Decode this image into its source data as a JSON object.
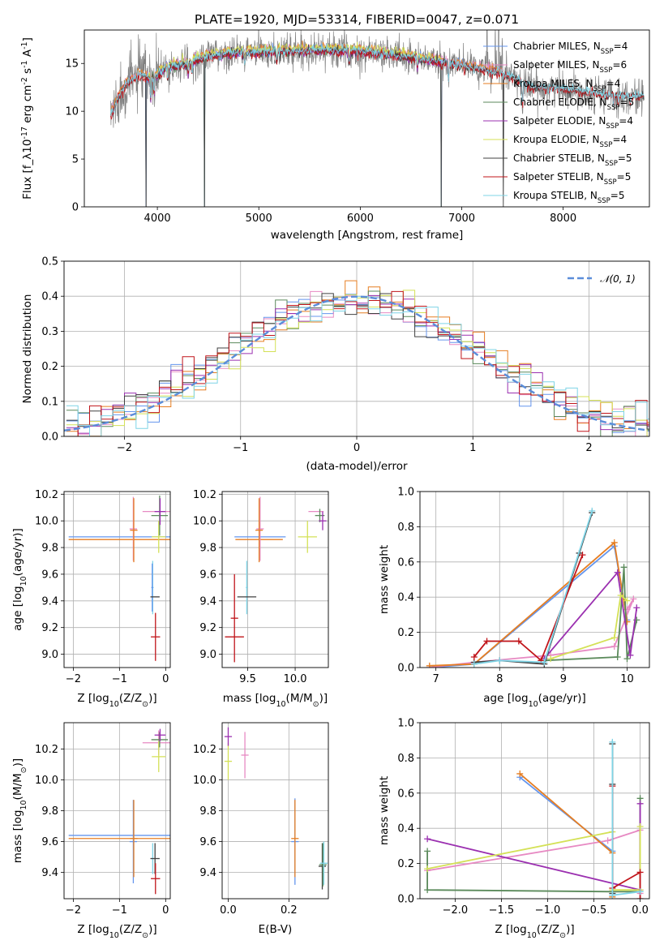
{
  "figure": {
    "title": "PLATE=1920, MJD=53314, FIBERID=0047, z=0.071"
  },
  "chart_data": [
    {
      "id": "spectrum",
      "type": "line",
      "xlabel": "wavelength [Angstrom, rest frame]",
      "ylabel": "Flux [f_λ10^-17 erg cm^-2 s^-1 A^-1]",
      "xlim": [
        3280,
        8850
      ],
      "ylim": [
        0,
        18.5
      ],
      "xticks": [
        4000,
        5000,
        6000,
        7000,
        8000
      ],
      "yticks": [
        0,
        5,
        10,
        15
      ],
      "grid": false,
      "legend_position": "right",
      "data_color": "#808080",
      "series": [
        {
          "name": "Chabrier MILES, N_SSP=4",
          "color": "#6495ED",
          "offset": 0.1,
          "range": [
            3540,
            7400
          ]
        },
        {
          "name": "Salpeter MILES, N_SSP=6",
          "color": "#E78AC3",
          "offset": 0.2,
          "range": [
            3540,
            7400
          ]
        },
        {
          "name": "Kroupa MILES, N_SSP=4",
          "color": "#E67E22",
          "offset": 0.25,
          "range": [
            3540,
            7400
          ]
        },
        {
          "name": "Chabrier ELODIE, N_SSP=5",
          "color": "#5B8A5B",
          "offset": 0.0,
          "range": [
            3900,
            6800
          ]
        },
        {
          "name": "Salpeter ELODIE, N_SSP=4",
          "color": "#9B30B0",
          "offset": -0.1,
          "range": [
            3900,
            6800
          ]
        },
        {
          "name": "Kroupa ELODIE, N_SSP=4",
          "color": "#D4E157",
          "offset": 0.3,
          "range": [
            3900,
            6800
          ]
        },
        {
          "name": "Chabrier STELIB, N_SSP=5",
          "color": "#404040",
          "offset": -0.05,
          "range": [
            3540,
            8800
          ]
        },
        {
          "name": "Salpeter STELIB, N_SSP=5",
          "color": "#C0141A",
          "offset": -0.15,
          "range": [
            3540,
            8800
          ]
        },
        {
          "name": "Kroupa STELIB, N_SSP=5",
          "color": "#7FD4E6",
          "offset": 0.05,
          "range": [
            3540,
            8800
          ]
        }
      ],
      "continuum": [
        [
          3540,
          9.6
        ],
        [
          3620,
          11.5
        ],
        [
          3700,
          13.0
        ],
        [
          3820,
          13.8
        ],
        [
          3950,
          13.4
        ],
        [
          4100,
          14.6
        ],
        [
          4300,
          15.0
        ],
        [
          4500,
          15.8
        ],
        [
          4800,
          16.1
        ],
        [
          5200,
          16.3
        ],
        [
          5600,
          16.4
        ],
        [
          6000,
          16.3
        ],
        [
          6400,
          15.8
        ],
        [
          6800,
          15.2
        ],
        [
          7200,
          14.4
        ],
        [
          7400,
          14.0
        ],
        [
          7700,
          12.5
        ],
        [
          8000,
          12.4
        ],
        [
          8400,
          11.8
        ],
        [
          8800,
          11.6
        ]
      ],
      "absorption_lines": [
        [
          3934,
          2.5
        ],
        [
          3969,
          2.0
        ],
        [
          4102,
          1.5
        ],
        [
          4305,
          1.5
        ],
        [
          4340,
          1.5
        ],
        [
          4861,
          1.2
        ],
        [
          5175,
          1.5
        ],
        [
          5890,
          1.5
        ],
        [
          6563,
          1.0
        ],
        [
          6870,
          2.0
        ],
        [
          7600,
          3.0
        ],
        [
          8500,
          1.0
        ],
        [
          8542,
          1.2
        ],
        [
          8662,
          1.0
        ]
      ],
      "sky_spikes": [
        [
          7250,
          6.0
        ],
        [
          7330,
          5.0
        ],
        [
          7365,
          4.0
        ],
        [
          7400,
          3.5
        ]
      ],
      "masked_dips": [
        [
          3890,
          0
        ],
        [
          4465,
          0
        ],
        [
          6800,
          0
        ],
        [
          7410,
          0
        ]
      ]
    },
    {
      "id": "residuals",
      "type": "line",
      "xlabel": "(data-model)/error",
      "ylabel": "Normed distribution",
      "xlim": [
        -2.52,
        2.52
      ],
      "ylim": [
        0,
        0.5
      ],
      "xticks": [
        -2,
        -1,
        0,
        1,
        2
      ],
      "yticks": [
        0.0,
        0.1,
        0.2,
        0.3,
        0.4,
        0.5
      ],
      "grid": true,
      "legend_position": "top-right",
      "gaussian": {
        "name": "𝒩(0, 1)",
        "mean": 0,
        "sigma": 1,
        "color": "#5B8DD9"
      },
      "bin_width": 0.1,
      "bin_start": -2.5
    },
    {
      "id": "age_vs_Z",
      "type": "scatter",
      "xlabel": "Z [log10(Z/Z⊙)]",
      "ylabel": "age [log10(age/yr)]",
      "xlim": [
        -2.2,
        0.1
      ],
      "ylim": [
        8.9,
        10.22
      ],
      "xticks": [
        -2,
        -1,
        0
      ],
      "yticks": [
        9.0,
        9.2,
        9.4,
        9.6,
        9.8,
        10.0,
        10.2
      ],
      "grid": true,
      "errorbars": [
        {
          "series": "Chabrier MILES",
          "x": -0.7,
          "xerr": 1.4,
          "y": 9.88,
          "yerr": 0.0
        },
        {
          "series": "Kroupa MILES",
          "x": -0.7,
          "xerr": 1.4,
          "y": 9.86,
          "yerr": 0.0
        },
        {
          "series": "Salpeter MILES (v)",
          "x": -0.7,
          "xerr": 0.0,
          "y": 9.94,
          "yerr": 0.24
        },
        {
          "series": "Kroupa MILES (v)",
          "x": -0.69,
          "xerr": 0.0,
          "y": 9.93,
          "yerr": 0.24
        },
        {
          "series": "Salpeter MILES",
          "x": -0.15,
          "xerr": 0.35,
          "y": 10.07,
          "yerr": 0.0
        },
        {
          "series": "Kroupa ELODIE",
          "x": -0.15,
          "xerr": 0.15,
          "y": 9.88,
          "yerr": 0.12
        },
        {
          "series": "Chabrier ELODIE",
          "x": -0.13,
          "xerr": 0.18,
          "y": 10.04,
          "yerr": 0.15
        },
        {
          "series": "Salpeter ELODIE",
          "x": -0.12,
          "xerr": 0.12,
          "y": 10.07,
          "yerr": 0.1
        },
        {
          "series": "Kroupa STELIB",
          "x": -0.28,
          "xerr": 0.02,
          "y": 9.5,
          "yerr": 0.2
        },
        {
          "series": "Chabrier MILES (s)",
          "x": -0.29,
          "xerr": 0.02,
          "y": 9.5,
          "yerr": 0.18
        },
        {
          "series": "Chabrier STELIB",
          "x": -0.23,
          "xerr": 0.1,
          "y": 9.43,
          "yerr": 0.0
        },
        {
          "series": "Salpeter STELIB",
          "x": -0.22,
          "xerr": 0.1,
          "y": 9.13,
          "yerr": 0.18
        }
      ]
    },
    {
      "id": "age_vs_mass",
      "type": "scatter",
      "xlabel": "mass [log10(M/M⊙)]",
      "ylabel": "",
      "xlim": [
        9.23,
        10.35
      ],
      "ylim": [
        8.9,
        10.22
      ],
      "xticks": [
        9.5,
        10.0
      ],
      "yticks": [
        9.0,
        9.2,
        9.4,
        9.6,
        9.8,
        10.0,
        10.2
      ],
      "grid": true,
      "errorbars": [
        {
          "series": "Chabrier MILES",
          "x": 9.63,
          "xerr": 0.27,
          "y": 9.88,
          "yerr": 0.0
        },
        {
          "series": "Kroupa MILES",
          "x": 9.62,
          "xerr": 0.25,
          "y": 9.86,
          "yerr": 0.0
        },
        {
          "series": "Salpeter MILES (v)",
          "x": 9.63,
          "xerr": 0.0,
          "y": 9.94,
          "yerr": 0.24
        },
        {
          "series": "Kroupa MILES (v)",
          "x": 9.62,
          "xerr": 0.0,
          "y": 9.93,
          "yerr": 0.24
        },
        {
          "series": "Salpeter MILES",
          "x": 10.22,
          "xerr": 0.08,
          "y": 10.07,
          "yerr": 0.0
        },
        {
          "series": "Kroupa ELODIE",
          "x": 10.13,
          "xerr": 0.1,
          "y": 9.88,
          "yerr": 0.12
        },
        {
          "series": "Chabrier ELODIE",
          "x": 10.26,
          "xerr": 0.05,
          "y": 10.04,
          "yerr": 0.05
        },
        {
          "series": "Salpeter ELODIE",
          "x": 10.29,
          "xerr": 0.04,
          "y": 10.0,
          "yerr": 0.07
        },
        {
          "series": "Kroupa STELIB",
          "x": 9.49,
          "xerr": 0.01,
          "y": 9.5,
          "yerr": 0.2
        },
        {
          "series": "Chabrier STELIB",
          "x": 9.49,
          "xerr": 0.1,
          "y": 9.43,
          "yerr": 0.0
        },
        {
          "series": "Salpeter STELIB",
          "x": 9.36,
          "xerr": 0.1,
          "y": 9.13,
          "yerr": 0.0
        },
        {
          "series": "Salpeter STELIB (v)",
          "x": 9.36,
          "xerr": 0.0,
          "y": 9.27,
          "yerr": 0.33
        }
      ]
    },
    {
      "id": "weight_vs_age",
      "type": "line",
      "xlabel": "age [log10(age/yr)]",
      "ylabel": "mass weight",
      "xlim": [
        6.75,
        10.35
      ],
      "ylim": [
        0,
        1.0
      ],
      "xticks": [
        7,
        8,
        9,
        10
      ],
      "yticks": [
        0.0,
        0.2,
        0.4,
        0.6,
        0.8,
        1.0
      ],
      "grid": true,
      "series": [
        {
          "name": "Chabrier MILES",
          "x": [
            6.9,
            7.6,
            9.8,
            10.0
          ],
          "y": [
            0.0,
            0.02,
            0.69,
            0.27
          ]
        },
        {
          "name": "Salpeter MILES",
          "x": [
            6.9,
            7.6,
            8.8,
            9.8,
            10.1,
            10.0
          ],
          "y": [
            0.0,
            0.03,
            0.07,
            0.12,
            0.39,
            0.33
          ]
        },
        {
          "name": "Kroupa MILES",
          "x": [
            6.9,
            7.6,
            9.8,
            10.0
          ],
          "y": [
            0.01,
            0.02,
            0.71,
            0.26
          ]
        },
        {
          "name": "Chabrier ELODIE",
          "x": [
            8.7,
            9.85,
            9.95,
            10.0,
            10.15
          ],
          "y": [
            0.04,
            0.06,
            0.57,
            0.05,
            0.27
          ]
        },
        {
          "name": "Salpeter ELODIE",
          "x": [
            8.7,
            9.85,
            10.05,
            10.15
          ],
          "y": [
            0.05,
            0.54,
            0.07,
            0.34
          ]
        },
        {
          "name": "Kroupa ELODIE",
          "x": [
            8.8,
            9.8,
            9.9,
            10.0
          ],
          "y": [
            0.05,
            0.17,
            0.41,
            0.38
          ]
        },
        {
          "name": "Chabrier STELIB",
          "x": [
            7.6,
            8.0,
            8.7,
            9.25,
            9.45
          ],
          "y": [
            0.03,
            0.04,
            0.02,
            0.65,
            0.88
          ]
        },
        {
          "name": "Salpeter STELIB",
          "x": [
            7.6,
            7.8,
            8.3,
            8.65,
            9.3
          ],
          "y": [
            0.06,
            0.15,
            0.15,
            0.04,
            0.64
          ]
        },
        {
          "name": "Kroupa STELIB",
          "x": [
            7.6,
            8.0,
            8.7,
            9.45
          ],
          "y": [
            0.02,
            0.04,
            0.03,
            0.89
          ]
        }
      ]
    },
    {
      "id": "mass_vs_Z",
      "type": "scatter",
      "xlabel": "Z [log10(Z/Z⊙)]",
      "ylabel": "mass [log10(M/M⊙)]",
      "xlim": [
        -2.2,
        0.1
      ],
      "ylim": [
        9.23,
        10.37
      ],
      "xticks": [
        -2,
        -1,
        0
      ],
      "yticks": [
        9.4,
        9.6,
        9.8,
        10.0,
        10.2
      ],
      "grid": true,
      "errorbars": [
        {
          "series": "Chabrier MILES",
          "x": -0.7,
          "xerr": 1.4,
          "y": 9.64,
          "yerr": 0.0
        },
        {
          "series": "Kroupa MILES",
          "x": -0.7,
          "xerr": 1.4,
          "y": 9.62,
          "yerr": 0.0
        },
        {
          "series": "Chabrier MILES (v)",
          "x": -0.7,
          "xerr": 0.0,
          "y": 9.6,
          "yerr": 0.27
        },
        {
          "series": "Kroupa MILES (v)",
          "x": -0.69,
          "xerr": 0.0,
          "y": 9.62,
          "yerr": 0.25
        },
        {
          "series": "Salpeter MILES",
          "x": -0.15,
          "xerr": 0.35,
          "y": 10.24,
          "yerr": 0.08
        },
        {
          "series": "Kroupa ELODIE",
          "x": -0.15,
          "xerr": 0.15,
          "y": 10.15,
          "yerr": 0.1
        },
        {
          "series": "Chabrier ELODIE",
          "x": -0.13,
          "xerr": 0.18,
          "y": 10.26,
          "yerr": 0.05
        },
        {
          "series": "Salpeter ELODIE",
          "x": -0.12,
          "xerr": 0.12,
          "y": 10.29,
          "yerr": 0.04
        },
        {
          "series": "Kroupa STELIB",
          "x": -0.28,
          "xerr": 0.02,
          "y": 9.49,
          "yerr": 0.1
        },
        {
          "series": "Chabrier STELIB",
          "x": -0.23,
          "xerr": 0.1,
          "y": 9.49,
          "yerr": 0.1
        },
        {
          "series": "Salpeter STELIB",
          "x": -0.22,
          "xerr": 0.1,
          "y": 9.36,
          "yerr": 0.1
        }
      ]
    },
    {
      "id": "mass_vs_ebv",
      "type": "scatter",
      "xlabel": "E(B-V)",
      "ylabel": "",
      "xlim": [
        -0.02,
        0.33
      ],
      "ylim": [
        9.23,
        10.37
      ],
      "xticks": [
        0.0,
        0.2
      ],
      "yticks": [
        9.4,
        9.6,
        9.8,
        10.0,
        10.2
      ],
      "grid": true,
      "errorbars": [
        {
          "series": "Kroupa ELODIE",
          "x": 0.0,
          "xerr": 0.0,
          "y": 10.12,
          "yerr": 0.12
        },
        {
          "series": "Salpeter ELODIE",
          "x": 0.0,
          "xerr": 0.0,
          "y": 10.28,
          "yerr": 0.06
        },
        {
          "series": "Salpeter MILES",
          "x": 0.055,
          "xerr": 0.0,
          "y": 10.16,
          "yerr": 0.15
        },
        {
          "series": "Chabrier MILES",
          "x": 0.22,
          "xerr": 0.0,
          "y": 9.6,
          "yerr": 0.28
        },
        {
          "series": "Kroupa MILES",
          "x": 0.22,
          "xerr": 0.0,
          "y": 9.62,
          "yerr": 0.25
        },
        {
          "series": "Chabrier STELIB",
          "x": 0.31,
          "xerr": 0.0,
          "y": 9.44,
          "yerr": 0.15
        },
        {
          "series": "Chabrier ELODIE",
          "x": 0.312,
          "xerr": 0.0,
          "y": 9.45,
          "yerr": 0.14
        },
        {
          "series": "Kroupa STELIB",
          "x": 0.315,
          "xerr": 0.0,
          "y": 9.46,
          "yerr": 0.14
        }
      ]
    },
    {
      "id": "weight_vs_Z",
      "type": "line",
      "xlabel": "Z [log10(Z/Z⊙)]",
      "ylabel": "mass weight",
      "xlim": [
        -2.38,
        0.1
      ],
      "ylim": [
        0,
        1.0
      ],
      "xticks": [
        -2.0,
        -1.5,
        -1.0,
        -0.5,
        0.0
      ],
      "yticks": [
        0.0,
        0.2,
        0.4,
        0.6,
        0.8,
        1.0
      ],
      "grid": true,
      "series": [
        {
          "name": "Chabrier MILES",
          "x": [
            -1.3,
            -0.3,
            -0.3
          ],
          "y": [
            0.69,
            0.27,
            0.02
          ]
        },
        {
          "name": "Salpeter MILES",
          "x": [
            -2.3,
            -0.35,
            0.0,
            0.0
          ],
          "y": [
            0.16,
            0.33,
            0.39,
            0.03
          ]
        },
        {
          "name": "Kroupa MILES",
          "x": [
            -1.3,
            -0.3,
            -0.3
          ],
          "y": [
            0.71,
            0.26,
            0.01
          ]
        },
        {
          "name": "Chabrier ELODIE",
          "x": [
            -2.3,
            -2.3,
            -0.3,
            0.0,
            0.0
          ],
          "y": [
            0.27,
            0.05,
            0.04,
            0.04,
            0.57
          ]
        },
        {
          "name": "Salpeter ELODIE",
          "x": [
            -2.3,
            0.0,
            0.0
          ],
          "y": [
            0.34,
            0.05,
            0.54
          ]
        },
        {
          "name": "Kroupa ELODIE",
          "x": [
            -2.3,
            -0.3,
            -0.3,
            0.0,
            0.0
          ],
          "y": [
            0.17,
            0.38,
            0.05,
            0.05,
            0.41
          ]
        },
        {
          "name": "Chabrier STELIB",
          "x": [
            -0.3,
            -0.3,
            -0.3
          ],
          "y": [
            0.88,
            0.65,
            0.03
          ]
        },
        {
          "name": "Salpeter STELIB",
          "x": [
            -0.3,
            -0.3,
            0.0,
            0.0
          ],
          "y": [
            0.64,
            0.06,
            0.15,
            0.0
          ]
        },
        {
          "name": "Kroupa STELIB",
          "x": [
            -0.3,
            -0.3,
            0.0
          ],
          "y": [
            0.89,
            0.02,
            0.04
          ]
        }
      ]
    }
  ]
}
